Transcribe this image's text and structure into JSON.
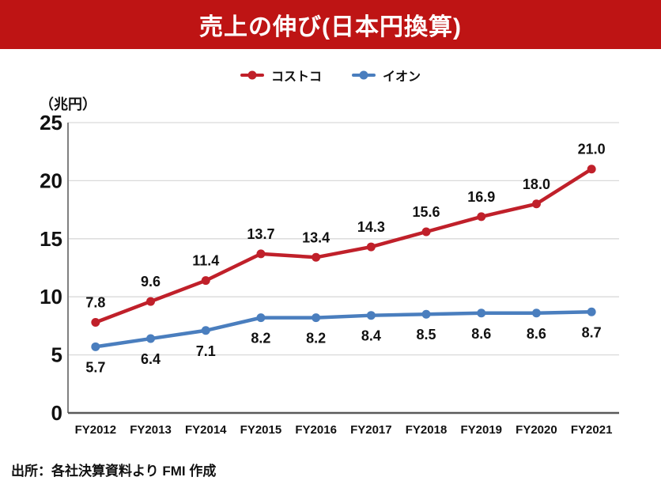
{
  "title": "売上の伸び(日本円換算)",
  "unit_label": "（兆円）",
  "source_note": "出所：各社決算資料より FMI 作成",
  "colors": {
    "banner": "#BE1414",
    "costco": "#C0202A",
    "aeon": "#4A7EBE",
    "grid": "#D9D9D9",
    "axis_y": "#808080",
    "axis_x": "#595959",
    "text": "#111111"
  },
  "chart_data": {
    "type": "line",
    "title": "売上の伸び(日本円換算)",
    "xlabel": "",
    "ylabel": "（兆円）",
    "categories": [
      "FY2012",
      "FY2013",
      "FY2014",
      "FY2015",
      "FY2016",
      "FY2017",
      "FY2018",
      "FY2019",
      "FY2020",
      "FY2021"
    ],
    "series": [
      {
        "id": "costco",
        "name": "コストコ",
        "color": "#C0202A",
        "values": [
          7.8,
          9.6,
          11.4,
          13.7,
          13.4,
          14.3,
          15.6,
          16.9,
          18.0,
          21.0
        ],
        "label_position": "above"
      },
      {
        "id": "aeon",
        "name": "イオン",
        "color": "#4A7EBE",
        "values": [
          5.7,
          6.4,
          7.1,
          8.2,
          8.2,
          8.4,
          8.5,
          8.6,
          8.6,
          8.7
        ],
        "label_position": "below"
      }
    ],
    "ylim": [
      0,
      25
    ],
    "ytick_step": 5,
    "grid": true,
    "legend_position": "top",
    "data_labels": true
  }
}
